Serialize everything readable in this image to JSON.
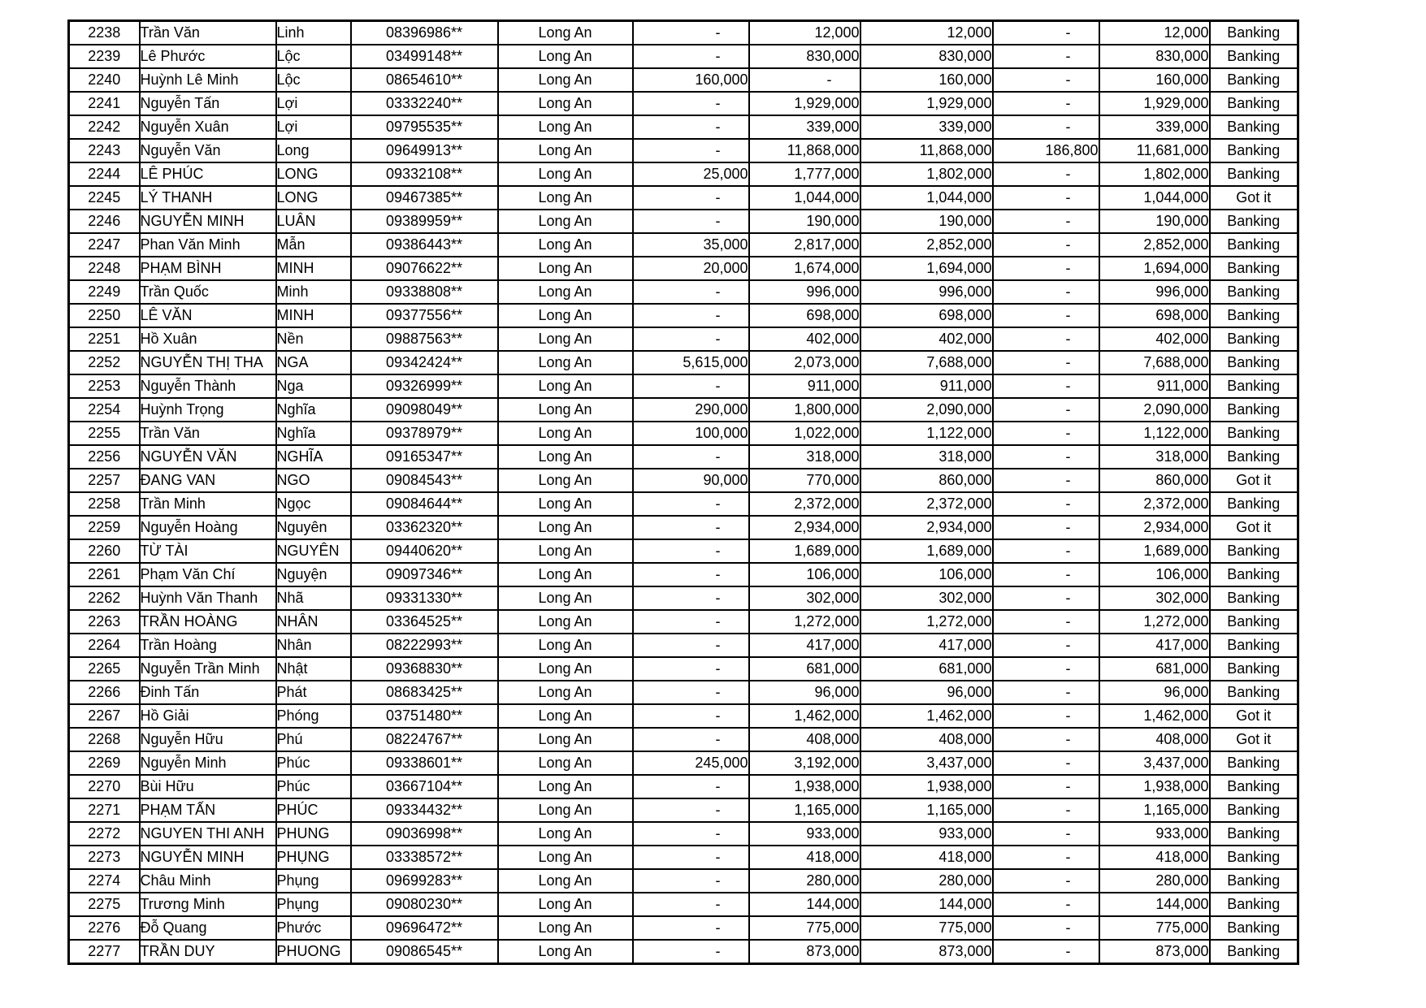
{
  "table": {
    "province_label": "Long An",
    "status_values": [
      "Banking",
      "Got it"
    ],
    "rows": [
      [
        "2238",
        "Trần Văn",
        "Linh",
        "08396986**",
        "Long An",
        "-",
        "12,000",
        "12,000",
        "-",
        "12,000",
        "Banking"
      ],
      [
        "2239",
        "Lê Phước",
        "Lộc",
        "03499148**",
        "Long An",
        "-",
        "830,000",
        "830,000",
        "-",
        "830,000",
        "Banking"
      ],
      [
        "2240",
        "Huỳnh Lê Minh",
        "Lộc",
        "08654610**",
        "Long An",
        "160,000",
        "-",
        "160,000",
        "-",
        "160,000",
        "Banking"
      ],
      [
        "2241",
        "Nguyễn Tấn",
        "Lợi",
        "03332240**",
        "Long An",
        "-",
        "1,929,000",
        "1,929,000",
        "-",
        "1,929,000",
        "Banking"
      ],
      [
        "2242",
        "Nguyễn Xuân",
        "Lợi",
        "09795535**",
        "Long An",
        "-",
        "339,000",
        "339,000",
        "-",
        "339,000",
        "Banking"
      ],
      [
        "2243",
        "Nguyễn Văn",
        "Long",
        "09649913**",
        "Long An",
        "-",
        "11,868,000",
        "11,868,000",
        "186,800",
        "11,681,000",
        "Banking"
      ],
      [
        "2244",
        "LÊ PHÚC",
        "LONG",
        "09332108**",
        "Long An",
        "25,000",
        "1,777,000",
        "1,802,000",
        "-",
        "1,802,000",
        "Banking"
      ],
      [
        "2245",
        "LÝ THANH",
        "LONG",
        "09467385**",
        "Long An",
        "-",
        "1,044,000",
        "1,044,000",
        "-",
        "1,044,000",
        "Got it"
      ],
      [
        "2246",
        "NGUYỄN MINH",
        "LUÂN",
        "09389959**",
        "Long An",
        "-",
        "190,000",
        "190,000",
        "-",
        "190,000",
        "Banking"
      ],
      [
        "2247",
        "Phan Văn Minh",
        "Mẫn",
        "09386443**",
        "Long An",
        "35,000",
        "2,817,000",
        "2,852,000",
        "-",
        "2,852,000",
        "Banking"
      ],
      [
        "2248",
        "PHẠM BÌNH",
        "MINH",
        "09076622**",
        "Long An",
        "20,000",
        "1,674,000",
        "1,694,000",
        "-",
        "1,694,000",
        "Banking"
      ],
      [
        "2249",
        "Trần Quốc",
        "Minh",
        "09338808**",
        "Long An",
        "-",
        "996,000",
        "996,000",
        "-",
        "996,000",
        "Banking"
      ],
      [
        "2250",
        "LÊ VĂN",
        "MINH",
        "09377556**",
        "Long An",
        "-",
        "698,000",
        "698,000",
        "-",
        "698,000",
        "Banking"
      ],
      [
        "2251",
        "Hồ Xuân",
        "Nền",
        "09887563**",
        "Long An",
        "-",
        "402,000",
        "402,000",
        "-",
        "402,000",
        "Banking"
      ],
      [
        "2252",
        "NGUYỄN THỊ THA",
        "NGA",
        "09342424**",
        "Long An",
        "5,615,000",
        "2,073,000",
        "7,688,000",
        "-",
        "7,688,000",
        "Banking"
      ],
      [
        "2253",
        "Nguyễn Thành",
        "Nga",
        "09326999**",
        "Long An",
        "-",
        "911,000",
        "911,000",
        "-",
        "911,000",
        "Banking"
      ],
      [
        "2254",
        "Huỳnh Trọng",
        "Nghĩa",
        "09098049**",
        "Long An",
        "290,000",
        "1,800,000",
        "2,090,000",
        "-",
        "2,090,000",
        "Banking"
      ],
      [
        "2255",
        "Trần Văn",
        "Nghĩa",
        "09378979**",
        "Long An",
        "100,000",
        "1,022,000",
        "1,122,000",
        "-",
        "1,122,000",
        "Banking"
      ],
      [
        "2256",
        "NGUYỄN VĂN",
        "NGHĨA",
        "09165347**",
        "Long An",
        "-",
        "318,000",
        "318,000",
        "-",
        "318,000",
        "Banking"
      ],
      [
        "2257",
        "ĐANG VAN",
        "NGO",
        "09084543**",
        "Long An",
        "90,000",
        "770,000",
        "860,000",
        "-",
        "860,000",
        "Got it"
      ],
      [
        "2258",
        "Trần Minh",
        "Ngọc",
        "09084644**",
        "Long An",
        "-",
        "2,372,000",
        "2,372,000",
        "-",
        "2,372,000",
        "Banking"
      ],
      [
        "2259",
        "Nguyễn Hoàng",
        "Nguyên",
        "03362320**",
        "Long An",
        "-",
        "2,934,000",
        "2,934,000",
        "-",
        "2,934,000",
        "Got it"
      ],
      [
        "2260",
        "TỪ TÀI",
        "NGUYÊN",
        "09440620**",
        "Long An",
        "-",
        "1,689,000",
        "1,689,000",
        "-",
        "1,689,000",
        "Banking"
      ],
      [
        "2261",
        "Phạm Văn Chí",
        "Nguyện",
        "09097346**",
        "Long An",
        "-",
        "106,000",
        "106,000",
        "-",
        "106,000",
        "Banking"
      ],
      [
        "2262",
        "Huỳnh Văn Thanh",
        "Nhã",
        "09331330**",
        "Long An",
        "-",
        "302,000",
        "302,000",
        "-",
        "302,000",
        "Banking"
      ],
      [
        "2263",
        "TRẦN HOÀNG",
        "NHÂN",
        "03364525**",
        "Long An",
        "-",
        "1,272,000",
        "1,272,000",
        "-",
        "1,272,000",
        "Banking"
      ],
      [
        "2264",
        "Trần Hoàng",
        "Nhân",
        "08222993**",
        "Long An",
        "-",
        "417,000",
        "417,000",
        "-",
        "417,000",
        "Banking"
      ],
      [
        "2265",
        "Nguyễn Trần Minh",
        "Nhật",
        "09368830**",
        "Long An",
        "-",
        "681,000",
        "681,000",
        "-",
        "681,000",
        "Banking"
      ],
      [
        "2266",
        "Đinh Tấn",
        "Phát",
        "08683425**",
        "Long An",
        "-",
        "96,000",
        "96,000",
        "-",
        "96,000",
        "Banking"
      ],
      [
        "2267",
        "Hồ Giải",
        "Phóng",
        "03751480**",
        "Long An",
        "-",
        "1,462,000",
        "1,462,000",
        "-",
        "1,462,000",
        "Got it"
      ],
      [
        "2268",
        "Nguyễn Hữu",
        "Phú",
        "08224767**",
        "Long An",
        "-",
        "408,000",
        "408,000",
        "-",
        "408,000",
        "Got it"
      ],
      [
        "2269",
        "Nguyễn Minh",
        "Phúc",
        "09338601**",
        "Long An",
        "245,000",
        "3,192,000",
        "3,437,000",
        "-",
        "3,437,000",
        "Banking"
      ],
      [
        "2270",
        "Bùi Hữu",
        "Phúc",
        "03667104**",
        "Long An",
        "-",
        "1,938,000",
        "1,938,000",
        "-",
        "1,938,000",
        "Banking"
      ],
      [
        "2271",
        "PHẠM TẤN",
        "PHÚC",
        "09334432**",
        "Long An",
        "-",
        "1,165,000",
        "1,165,000",
        "-",
        "1,165,000",
        "Banking"
      ],
      [
        "2272",
        "NGUYEN THI ANH",
        "PHUNG",
        "09036998**",
        "Long An",
        "-",
        "933,000",
        "933,000",
        "-",
        "933,000",
        "Banking"
      ],
      [
        "2273",
        "NGUYỄN MINH",
        "PHỤNG",
        "03338572**",
        "Long An",
        "-",
        "418,000",
        "418,000",
        "-",
        "418,000",
        "Banking"
      ],
      [
        "2274",
        "Châu Minh",
        "Phụng",
        "09699283**",
        "Long An",
        "-",
        "280,000",
        "280,000",
        "-",
        "280,000",
        "Banking"
      ],
      [
        "2275",
        "Trương Minh",
        "Phụng",
        "09080230**",
        "Long An",
        "-",
        "144,000",
        "144,000",
        "-",
        "144,000",
        "Banking"
      ],
      [
        "2276",
        "Đỗ Quang",
        "Phước",
        "09696472**",
        "Long An",
        "-",
        "775,000",
        "775,000",
        "-",
        "775,000",
        "Banking"
      ],
      [
        "2277",
        "TRẦN DUY",
        "PHUONG",
        "09086545**",
        "Long An",
        "-",
        "873,000",
        "873,000",
        "-",
        "873,000",
        "Banking"
      ]
    ]
  }
}
